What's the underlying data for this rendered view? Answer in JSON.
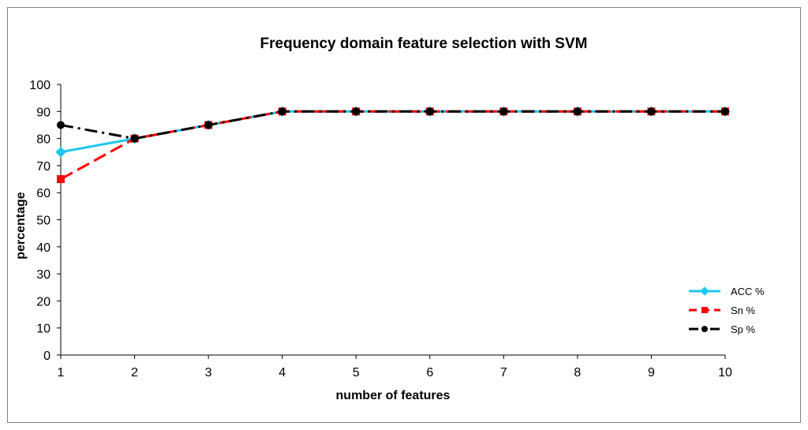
{
  "chart_data": {
    "type": "line",
    "title": "Frequency domain feature selection with SVM",
    "xlabel": "number of features",
    "ylabel": "percentage",
    "x": [
      1,
      2,
      3,
      4,
      5,
      6,
      7,
      8,
      9,
      10
    ],
    "xlim": [
      1,
      10
    ],
    "ylim": [
      0,
      100
    ],
    "yticks": [
      0,
      10,
      20,
      30,
      40,
      50,
      60,
      70,
      80,
      90,
      100
    ],
    "grid": false,
    "legend_position": "bottom-right",
    "series": [
      {
        "name": "ACC %",
        "color": "#1ec8f0",
        "marker": "diamond",
        "dash": "solid",
        "values": [
          75,
          80,
          85,
          90,
          90,
          90,
          90,
          90,
          90,
          90
        ]
      },
      {
        "name": "Sn %",
        "color": "#ff0000",
        "marker": "square",
        "dash": "dashed",
        "values": [
          65,
          80,
          85,
          90,
          90,
          90,
          90,
          90,
          90,
          90
        ]
      },
      {
        "name": "Sp %",
        "color": "#000000",
        "marker": "circle",
        "dash": "dashdot",
        "values": [
          85,
          80,
          85,
          90,
          90,
          90,
          90,
          90,
          90,
          90
        ]
      }
    ]
  }
}
